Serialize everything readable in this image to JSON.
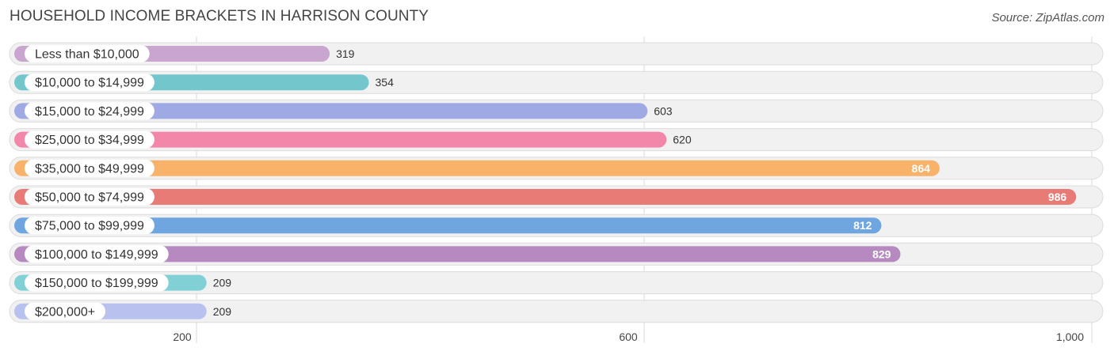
{
  "header": {
    "title": "HOUSEHOLD INCOME BRACKETS IN HARRISON COUNTY",
    "source": "Source: ZipAtlas.com"
  },
  "chart_data": {
    "type": "bar",
    "orientation": "horizontal",
    "title": "HOUSEHOLD INCOME BRACKETS IN HARRISON COUNTY",
    "xlabel": "",
    "ylabel": "",
    "categories": [
      "Less than $10,000",
      "$10,000 to $14,999",
      "$15,000 to $24,999",
      "$25,000 to $34,999",
      "$35,000 to $49,999",
      "$50,000 to $74,999",
      "$75,000 to $99,999",
      "$100,000 to $149,999",
      "$150,000 to $199,999",
      "$200,000+"
    ],
    "values": [
      319,
      354,
      603,
      620,
      864,
      986,
      812,
      829,
      209,
      209
    ],
    "value_labels": [
      "319",
      "354",
      "603",
      "620",
      "864",
      "986",
      "812",
      "829",
      "209",
      "209"
    ],
    "colors": [
      "#c9a6d0",
      "#72c6cc",
      "#9faae4",
      "#f387aa",
      "#f8b26a",
      "#e97b76",
      "#6fa6e0",
      "#b689c0",
      "#80d0d6",
      "#b9c1ee"
    ],
    "xticks": [
      200,
      600,
      1000
    ],
    "xtick_labels": [
      "200",
      "600",
      "1,000"
    ],
    "xlim": [
      40,
      1112
    ],
    "grid": true,
    "legend": "none"
  }
}
